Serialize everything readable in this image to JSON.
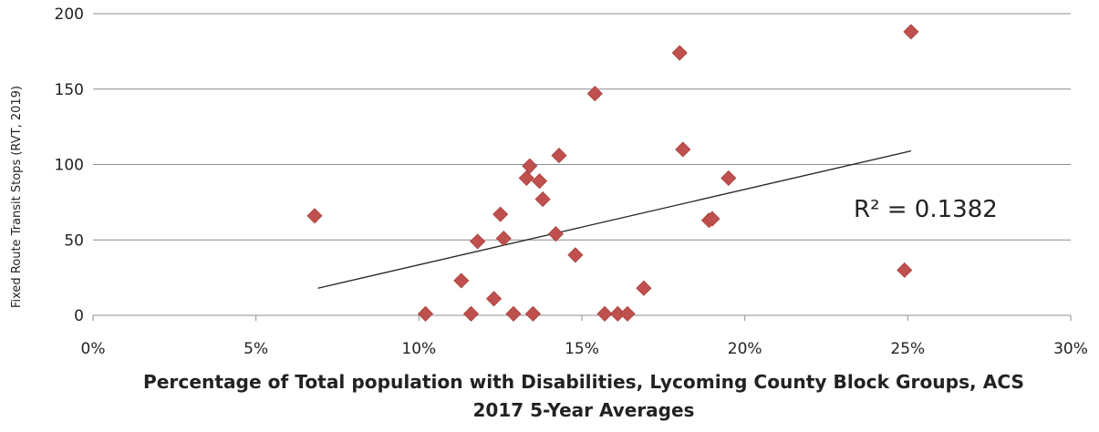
{
  "chart_data": {
    "type": "scatter",
    "title": "",
    "xlabel_lines": [
      "Percentage of Total population with Disabilities, Lycoming County Block Groups, ACS",
      "2017 5-Year Averages"
    ],
    "ylabel": "Fixed Route Transit Stops (RVT, 2019)",
    "xlim": [
      0,
      0.3
    ],
    "ylim": [
      0,
      200
    ],
    "x_ticks": [
      0,
      0.05,
      0.1,
      0.15,
      0.2,
      0.25,
      0.3
    ],
    "x_tick_labels": [
      "0%",
      "5%",
      "10%",
      "15%",
      "20%",
      "25%",
      "30%"
    ],
    "y_ticks": [
      0,
      50,
      100,
      150,
      200
    ],
    "y_tick_labels": [
      "0",
      "50",
      "100",
      "150",
      "200"
    ],
    "grid": "horizontal",
    "marker_color": "#c0504d",
    "series": [
      {
        "points": [
          {
            "x": 0.068,
            "y": 66
          },
          {
            "x": 0.102,
            "y": 1
          },
          {
            "x": 0.113,
            "y": 23
          },
          {
            "x": 0.116,
            "y": 1
          },
          {
            "x": 0.118,
            "y": 49
          },
          {
            "x": 0.123,
            "y": 11
          },
          {
            "x": 0.125,
            "y": 67
          },
          {
            "x": 0.126,
            "y": 51
          },
          {
            "x": 0.129,
            "y": 1
          },
          {
            "x": 0.133,
            "y": 91
          },
          {
            "x": 0.134,
            "y": 99
          },
          {
            "x": 0.135,
            "y": 1
          },
          {
            "x": 0.137,
            "y": 89
          },
          {
            "x": 0.138,
            "y": 77
          },
          {
            "x": 0.142,
            "y": 54
          },
          {
            "x": 0.143,
            "y": 106
          },
          {
            "x": 0.148,
            "y": 40
          },
          {
            "x": 0.154,
            "y": 147
          },
          {
            "x": 0.157,
            "y": 1
          },
          {
            "x": 0.161,
            "y": 1
          },
          {
            "x": 0.164,
            "y": 1
          },
          {
            "x": 0.169,
            "y": 18
          },
          {
            "x": 0.18,
            "y": 174
          },
          {
            "x": 0.181,
            "y": 110
          },
          {
            "x": 0.189,
            "y": 63
          },
          {
            "x": 0.19,
            "y": 64
          },
          {
            "x": 0.195,
            "y": 91
          },
          {
            "x": 0.249,
            "y": 30
          },
          {
            "x": 0.251,
            "y": 188
          }
        ]
      }
    ],
    "trendline": {
      "x_start": 0.069,
      "y_start": 18,
      "x_end": 0.251,
      "y_end": 109,
      "color": "#222222",
      "label": "R² = 0.1382"
    }
  }
}
